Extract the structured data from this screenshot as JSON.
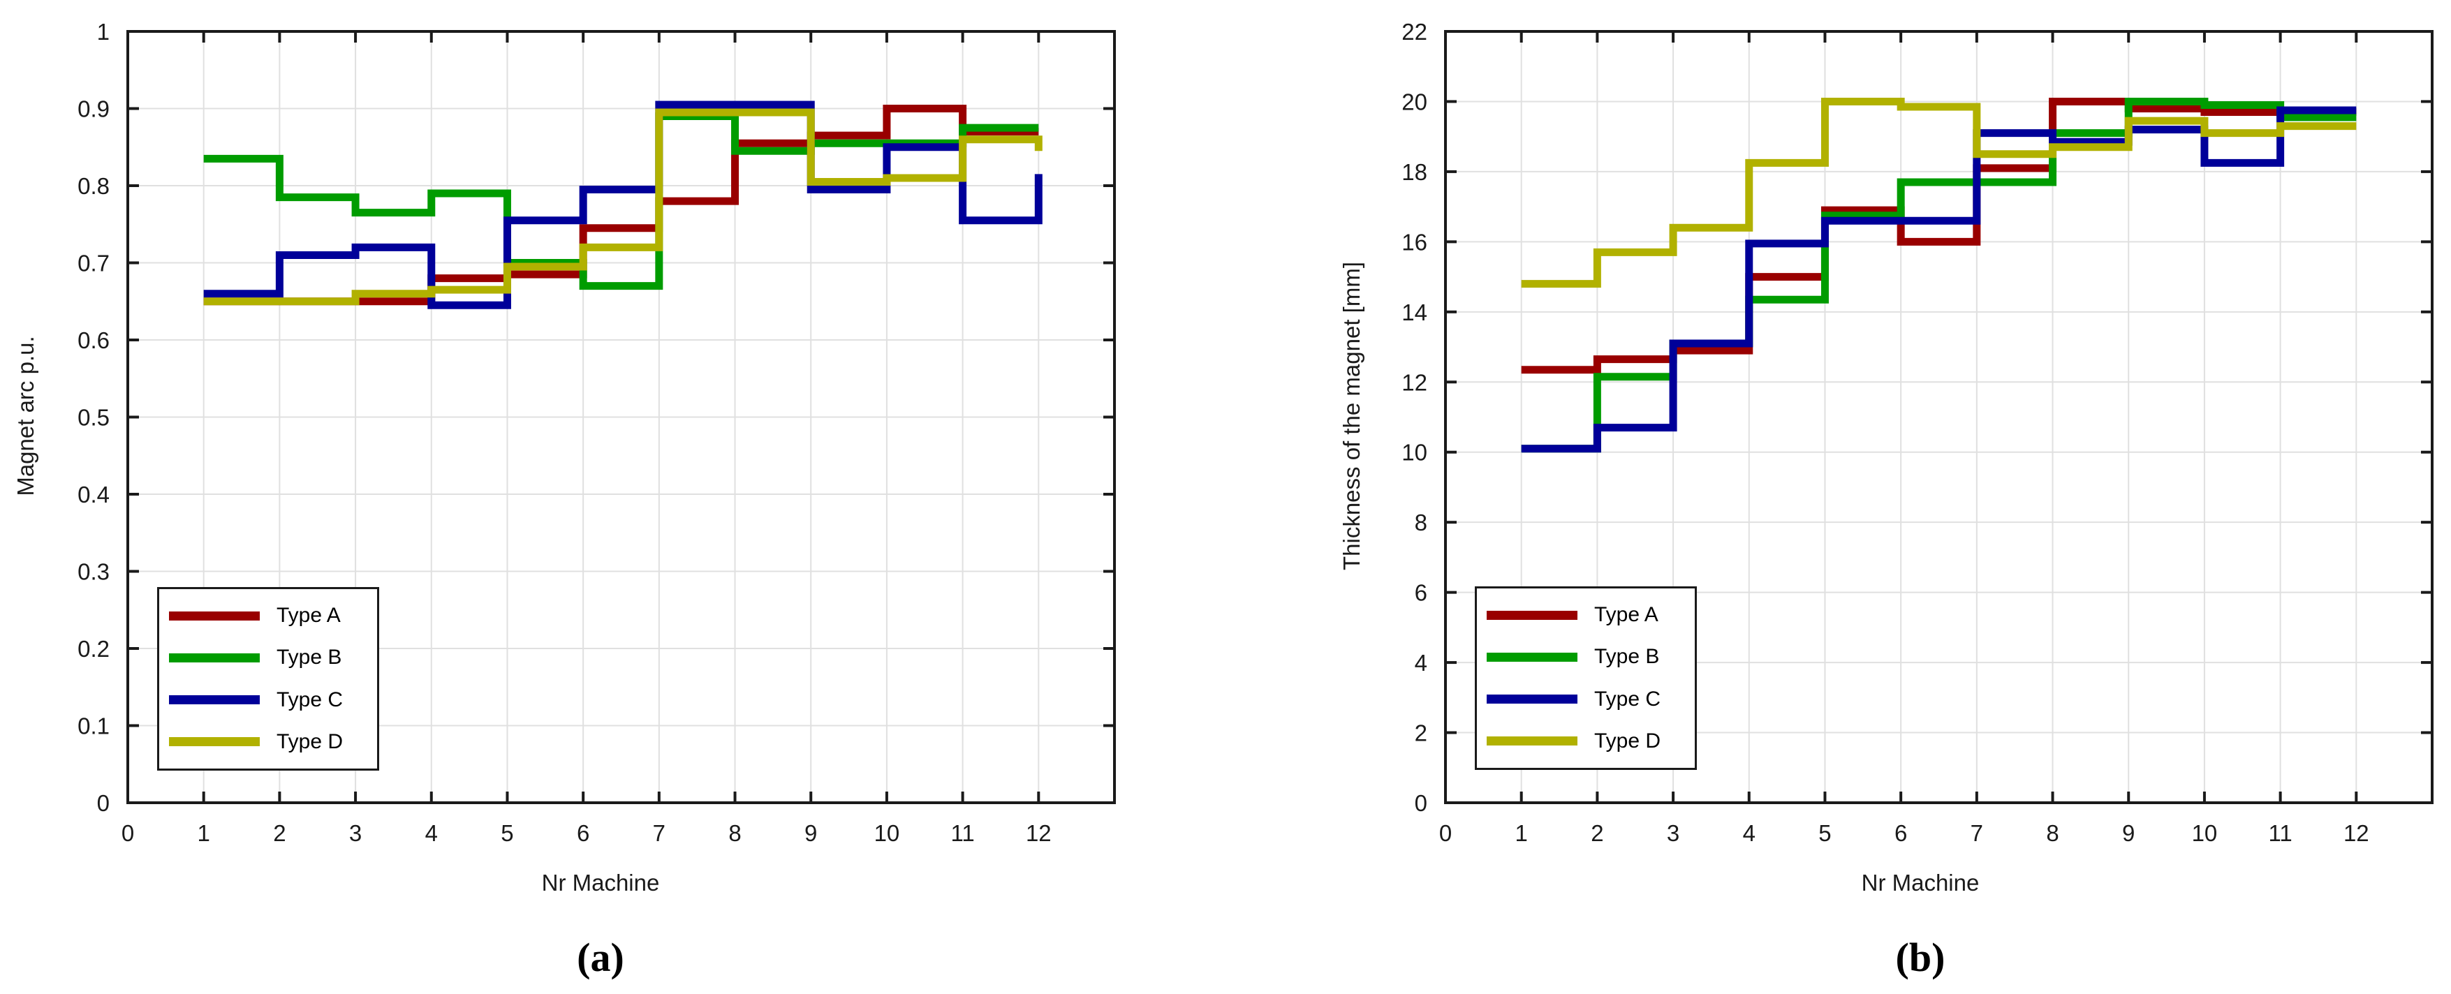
{
  "page": {
    "background": "#ffffff"
  },
  "captions": {
    "a": "(a)",
    "b": "(b)"
  },
  "legend": {
    "position": "lower-left",
    "items": [
      {
        "label": "Type A",
        "color": "#990000"
      },
      {
        "label": "Type B",
        "color": "#009c00"
      },
      {
        "label": "Type C",
        "color": "#000099"
      },
      {
        "label": "Type D",
        "color": "#b1b100"
      }
    ]
  },
  "chart_data": [
    {
      "type": "line",
      "subtype": "stairs-step-after",
      "panel": "a",
      "title": "",
      "xlabel": "Nr Machine",
      "ylabel": "Magnet arc p.u.",
      "xlim": [
        0,
        13
      ],
      "ylim": [
        0,
        1
      ],
      "grid": true,
      "legend_position": "lower-left",
      "xticks": [
        0,
        1,
        2,
        3,
        4,
        5,
        6,
        7,
        8,
        9,
        10,
        11,
        12
      ],
      "xtick_labels": [
        "0",
        "1",
        "2",
        "3",
        "4",
        "5",
        "6",
        "7",
        "8",
        "9",
        "10",
        "11",
        "12"
      ],
      "yticks": [
        0,
        0.1,
        0.2,
        0.3,
        0.4,
        0.5,
        0.6,
        0.7,
        0.8,
        0.9,
        1
      ],
      "ytick_labels": [
        "0",
        "0.1",
        "0.2",
        "0.3",
        "0.4",
        "0.5",
        "0.6",
        "0.7",
        "0.8",
        "0.9",
        "1"
      ],
      "categories": [
        1,
        2,
        3,
        4,
        5,
        6,
        7,
        8,
        9,
        10,
        11,
        12
      ],
      "series": [
        {
          "name": "Type A",
          "color": "#990000",
          "values": [
            0.65,
            0.65,
            0.65,
            0.68,
            0.685,
            0.745,
            0.78,
            0.855,
            0.865,
            0.9,
            0.87,
            0.87
          ]
        },
        {
          "name": "Type B",
          "color": "#009c00",
          "values": [
            0.835,
            0.785,
            0.765,
            0.79,
            0.7,
            0.67,
            0.89,
            0.845,
            0.855,
            0.855,
            0.875,
            0.875
          ]
        },
        {
          "name": "Type C",
          "color": "#000099",
          "values": [
            0.66,
            0.71,
            0.72,
            0.645,
            0.755,
            0.795,
            0.905,
            0.905,
            0.795,
            0.85,
            0.755,
            0.815
          ]
        },
        {
          "name": "Type D",
          "color": "#b1b100",
          "values": [
            0.65,
            0.65,
            0.66,
            0.665,
            0.695,
            0.72,
            0.895,
            0.895,
            0.805,
            0.81,
            0.86,
            0.845
          ]
        }
      ]
    },
    {
      "type": "line",
      "subtype": "stairs-step-after",
      "panel": "b",
      "title": "",
      "xlabel": "Nr Machine",
      "ylabel": "Thickness of the magnet [mm]",
      "xlim": [
        0,
        13
      ],
      "ylim": [
        0,
        22
      ],
      "grid": true,
      "legend_position": "lower-left",
      "xticks": [
        0,
        1,
        2,
        3,
        4,
        5,
        6,
        7,
        8,
        9,
        10,
        11,
        12
      ],
      "xtick_labels": [
        "0",
        "1",
        "2",
        "3",
        "4",
        "5",
        "6",
        "7",
        "8",
        "9",
        "10",
        "11",
        "12"
      ],
      "yticks": [
        0,
        2,
        4,
        6,
        8,
        10,
        12,
        14,
        16,
        18,
        20,
        22
      ],
      "ytick_labels": [
        "0",
        "2",
        "4",
        "6",
        "8",
        "10",
        "12",
        "14",
        "16",
        "18",
        "20",
        "22"
      ],
      "categories": [
        1,
        2,
        3,
        4,
        5,
        6,
        7,
        8,
        9,
        10,
        11,
        12
      ],
      "series": [
        {
          "name": "Type A",
          "color": "#990000",
          "values": [
            12.35,
            12.65,
            12.9,
            15.0,
            16.9,
            16.0,
            18.1,
            20.0,
            19.8,
            19.7,
            19.7,
            19.7
          ]
        },
        {
          "name": "Type B",
          "color": "#009c00",
          "values": [
            10.1,
            12.15,
            13.1,
            14.35,
            16.75,
            17.7,
            17.7,
            19.1,
            20.0,
            19.9,
            19.55,
            19.55
          ]
        },
        {
          "name": "Type C",
          "color": "#000099",
          "values": [
            10.1,
            10.7,
            13.1,
            15.95,
            16.6,
            16.6,
            19.1,
            18.85,
            19.2,
            18.25,
            19.75,
            19.75
          ]
        },
        {
          "name": "Type D",
          "color": "#b1b100",
          "values": [
            14.8,
            15.7,
            16.4,
            18.25,
            20.0,
            19.85,
            18.5,
            18.7,
            19.45,
            19.1,
            19.3,
            19.3
          ]
        }
      ]
    }
  ]
}
